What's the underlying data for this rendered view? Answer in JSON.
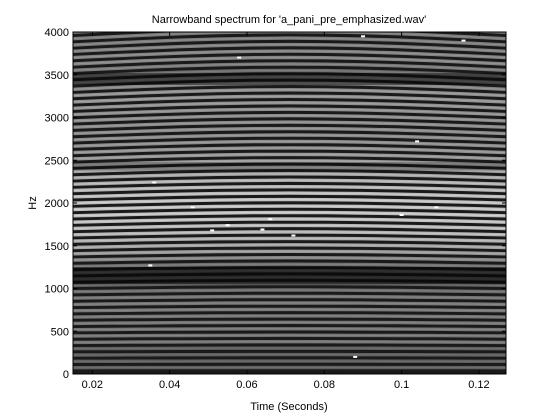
{
  "chart_data": {
    "type": "heatmap",
    "title": "Narrowband spectrum for 'a_pani_pre_emphasized.wav'",
    "xlabel": "Time (Seconds)",
    "ylabel": "Hz",
    "xlim": [
      0.015,
      0.127
    ],
    "ylim": [
      0,
      4000
    ],
    "x_ticks": [
      0.02,
      0.04,
      0.06,
      0.08,
      0.1,
      0.12
    ],
    "x_tick_labels": [
      "0.02",
      "0.04",
      "0.06",
      "0.08",
      "0.1",
      "0.12"
    ],
    "y_ticks": [
      0,
      500,
      1000,
      1500,
      2000,
      2500,
      3000,
      3500,
      4000
    ],
    "y_tick_labels": [
      "0",
      "500",
      "1000",
      "1500",
      "2000",
      "2500",
      "3000",
      "3500",
      "4000"
    ],
    "harmonic_spacing_hz": 74,
    "harmonic_drift_hz": 40,
    "colormap": "grayscale",
    "grid": false,
    "colors": {
      "background": "#ffffff",
      "axes": "#000000",
      "band_bright": "#dcdcdc",
      "band_dark": "#0c0c0c"
    }
  }
}
